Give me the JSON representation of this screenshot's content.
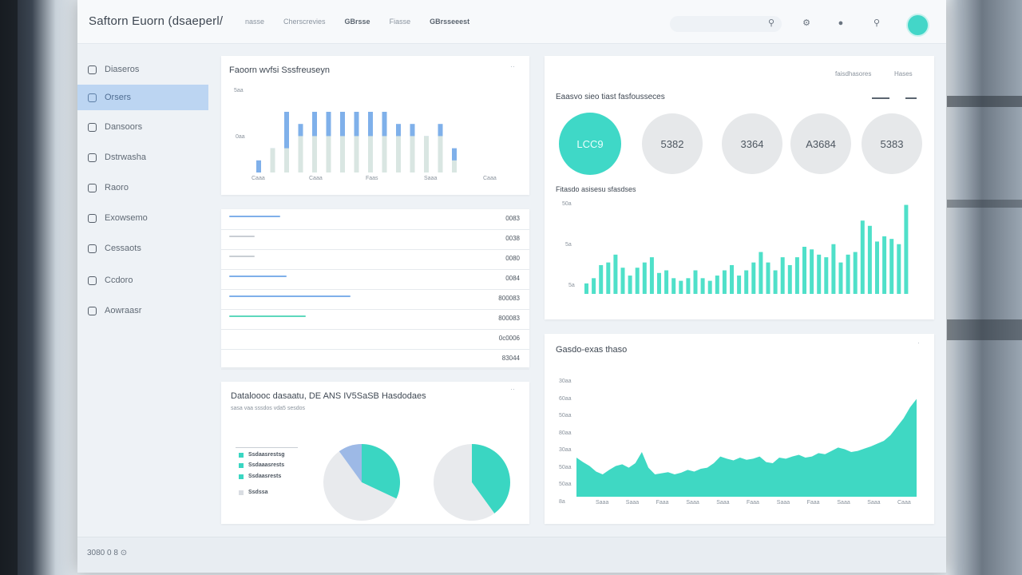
{
  "app": {
    "title": "Saftorn Euorn (dsaeperl/"
  },
  "topnav": [
    "nasse",
    "Cherscrevies",
    "GBrsse",
    "Fiasse",
    "GBrsseeest"
  ],
  "sidebar": {
    "items": [
      {
        "label": "Diaseros",
        "active": false
      },
      {
        "label": "Orsers",
        "active": true
      },
      {
        "label": "Dansoors",
        "active": false
      },
      {
        "label": "Dstrwasha",
        "active": false
      },
      {
        "label": "Raoro",
        "active": false
      },
      {
        "label": "Exowsemo",
        "active": false
      },
      {
        "label": "Cessaots",
        "active": false
      },
      {
        "label": "Ccdoro",
        "active": false
      },
      {
        "label": "Aowraasr",
        "active": false
      }
    ]
  },
  "bar_card": {
    "title": "Faoorn wvfsi Sssfreuseyn",
    "y_labels": [
      "5aa",
      "0aa"
    ],
    "x_labels": [
      "Caaa",
      "Caaa",
      "Faas",
      "Saaa",
      "Caaa"
    ]
  },
  "list_card": {
    "rows": [
      {
        "value": "0083",
        "fill": 0.16,
        "color": "#7fb0ea"
      },
      {
        "value": "0038",
        "fill": 0.08,
        "color": "#c9ced4"
      },
      {
        "value": "0080",
        "fill": 0.08,
        "color": "#c9ced4"
      },
      {
        "value": "0084",
        "fill": 0.18,
        "color": "#7fb0ea"
      },
      {
        "value": "800083",
        "fill": 0.38,
        "color": "#7fb0ea"
      },
      {
        "value": "800083",
        "fill": 0.24,
        "color": "#5ed8bc"
      },
      {
        "value": "0c0006",
        "fill": 0,
        "color": "#c9ced4"
      },
      {
        "value": "83044",
        "fill": 0,
        "color": "#c9ced4"
      }
    ]
  },
  "pie_card": {
    "title": "Dataloooc dasaatu, DE ANS IV5SaSB Hasdodaes",
    "subtitle": "sasa vaa sssdos vda5 sesdos",
    "legend": [
      {
        "label": "Ssdaasrestsg",
        "color": "#3ad6c2"
      },
      {
        "label": "Ssdaaasrests",
        "color": "#3ad6c2"
      },
      {
        "label": "Ssdaasrests",
        "color": "#3ad6c2"
      },
      {
        "label": "Ssdssa",
        "color": "#d9dde2"
      }
    ]
  },
  "stats_card": {
    "header_links": [
      "faisdhasores",
      "Hases"
    ],
    "title": "Eaasvo sieo tiast fasfousseces",
    "circles": [
      "LCC9",
      "5382",
      "3364",
      "A3684",
      "5383"
    ],
    "sub_title": "Fitasdo asisesu sfasdses",
    "y_labels": [
      "50a",
      "5a",
      "5a"
    ]
  },
  "area_card": {
    "title": "Gasdo-exas thaso",
    "y_labels": [
      "30aa",
      "60aa",
      "50aa",
      "80aa",
      "30aa",
      "50aa",
      "50aa",
      "8a"
    ],
    "x_labels": [
      "Saaa",
      "Saaa",
      "Faaa",
      "Saaa",
      "Saaa",
      "Faaa",
      "Saaa",
      "Faaa",
      "Saaa",
      "Saaa",
      "Caaa"
    ]
  },
  "footer": {
    "text": "3080 0 8 ⊙"
  },
  "chart_data": [
    {
      "type": "bar",
      "title": "Faoorn wvfsi Sssfreuseyn",
      "series": [
        {
          "values": [
            1,
            2,
            5,
            4,
            5,
            5,
            5,
            5,
            5,
            5,
            4,
            4,
            3,
            4,
            2
          ]
        },
        {
          "values": [
            0,
            2,
            2,
            3,
            3,
            3,
            3,
            3,
            3,
            3,
            3,
            3,
            3,
            3,
            1
          ]
        }
      ]
    },
    {
      "type": "bar",
      "title": "Fitasdo asisesu sfasdses",
      "values": [
        20,
        30,
        55,
        60,
        75,
        50,
        35,
        50,
        60,
        70,
        40,
        45,
        30,
        25,
        30,
        45,
        30,
        25,
        35,
        45,
        55,
        35,
        45,
        60,
        80,
        60,
        45,
        70,
        55,
        70,
        90,
        85,
        75,
        70,
        95,
        60,
        75,
        80,
        140,
        130,
        100,
        110,
        105,
        95,
        170
      ]
    },
    {
      "type": "area",
      "title": "Gasdo-exas thaso",
      "values": [
        70,
        62,
        55,
        45,
        40,
        48,
        55,
        58,
        52,
        60,
        80,
        52,
        40,
        42,
        44,
        40,
        43,
        48,
        45,
        50,
        52,
        60,
        72,
        68,
        65,
        70,
        66,
        68,
        72,
        62,
        60,
        70,
        68,
        72,
        75,
        70,
        72,
        78,
        76,
        82,
        88,
        85,
        80,
        82,
        86,
        90,
        95,
        100,
        110,
        125,
        140,
        160,
        175
      ]
    },
    {
      "type": "pie",
      "values": [
        32,
        58,
        10
      ],
      "colors": [
        "#3ad6c2",
        "#e8eaed",
        "#9db9e6"
      ]
    },
    {
      "type": "pie",
      "values": [
        40,
        60
      ],
      "colors": [
        "#3ad6c2",
        "#e8eaed"
      ]
    }
  ]
}
